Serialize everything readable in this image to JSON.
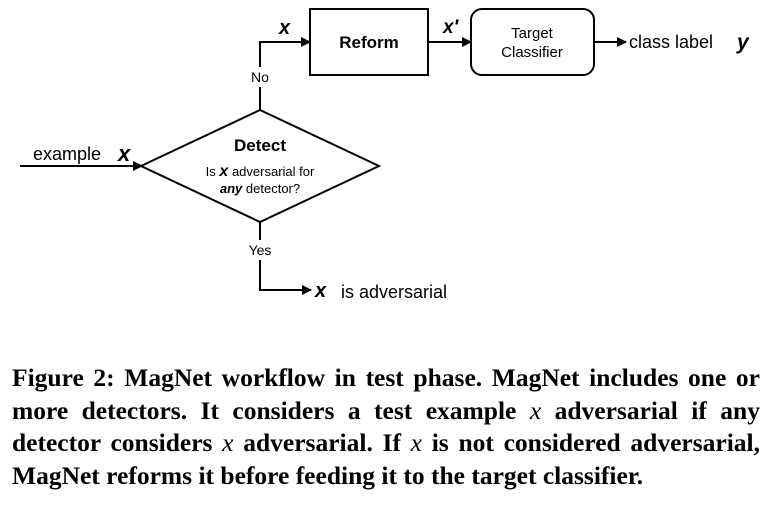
{
  "diagram": {
    "input_label": "example",
    "var_x": "x",
    "var_x_prime": "x′",
    "var_y": "y",
    "detect": {
      "title": "Detect",
      "q_prefix": "Is",
      "q_suffix": "adversarial for",
      "q_any": "any",
      "q_detector": "detector?"
    },
    "no_label": "No",
    "yes_label": "Yes",
    "reform_label": "Reform",
    "classifier_line1": "Target",
    "classifier_line2": "Classifier",
    "output_label": "class label",
    "adversarial_label": "is adversarial"
  },
  "caption": {
    "part1": "Figure 2: MagNet workflow in test phase. MagNet includes one or more detectors. It considers a test example",
    "var1": "x",
    "part2": "adversarial if any detector considers",
    "var2": "x",
    "part3": "adversarial. If",
    "var3": "x",
    "part4": "is not considered adversarial, MagNet reforms it before feeding it to the target classifier."
  }
}
